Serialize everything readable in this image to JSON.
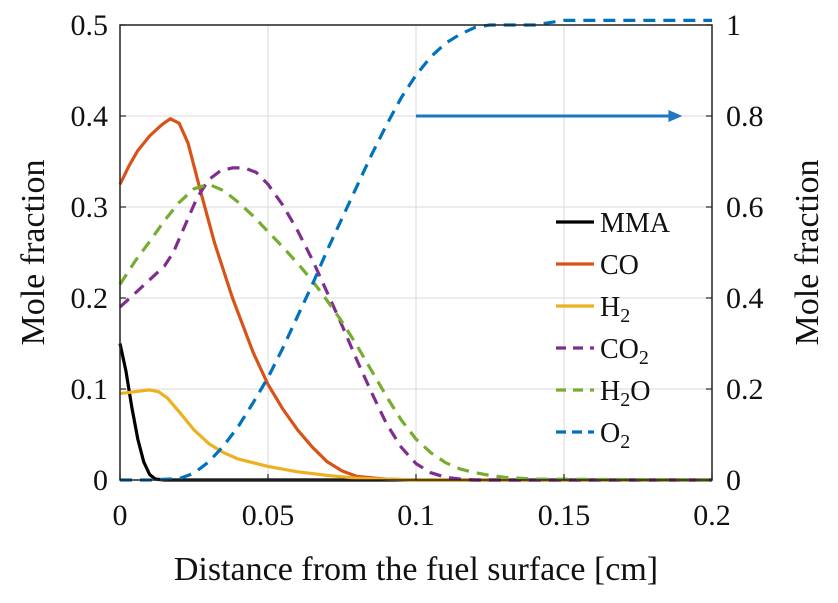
{
  "chart_data": {
    "type": "line",
    "title": "",
    "xlabel": "Distance from the fuel surface [cm]",
    "ylabel_left": "Mole fraction",
    "ylabel_right": "Mole fraction",
    "xlim": [
      0,
      0.2
    ],
    "ylim_left": [
      0,
      0.5
    ],
    "ylim_right": [
      0,
      1
    ],
    "xticks": [
      0,
      0.05,
      0.1,
      0.15,
      0.2
    ],
    "xtick_labels": [
      "0",
      "0.05",
      "0.1",
      "0.15",
      "0.2"
    ],
    "yticks_left": [
      0,
      0.1,
      0.2,
      0.3,
      0.4,
      0.5
    ],
    "ytick_labels_left": [
      "0",
      "0.1",
      "0.2",
      "0.3",
      "0.4",
      "0.5"
    ],
    "yticks_right": [
      0,
      0.2,
      0.4,
      0.6,
      0.8,
      1
    ],
    "ytick_labels_right": [
      "0",
      "0.2",
      "0.4",
      "0.6",
      "0.8",
      "1"
    ],
    "grid": true,
    "legend_position": "center-right",
    "arrow": {
      "from": [
        0.1,
        0.8
      ],
      "to": [
        0.19,
        0.8
      ],
      "axis": "right",
      "color": "#1f77c4"
    },
    "series": [
      {
        "name": "MMA",
        "legend_base": "MMA",
        "legend_sub": "",
        "legend_tail": "",
        "axis": "left",
        "color": "#000000",
        "dash": "solid",
        "x": [
          0,
          0.002,
          0.004,
          0.006,
          0.008,
          0.01,
          0.012,
          0.015,
          0.2
        ],
        "y": [
          0.15,
          0.12,
          0.08,
          0.045,
          0.02,
          0.006,
          0.001,
          0,
          0
        ]
      },
      {
        "name": "CO",
        "legend_base": "CO",
        "legend_sub": "",
        "legend_tail": "",
        "axis": "left",
        "color": "#d95319",
        "dash": "solid",
        "x": [
          0,
          0.003,
          0.006,
          0.01,
          0.014,
          0.017,
          0.02,
          0.023,
          0.027,
          0.032,
          0.038,
          0.045,
          0.05,
          0.055,
          0.06,
          0.065,
          0.07,
          0.075,
          0.08,
          0.09,
          0.1,
          0.2
        ],
        "y": [
          0.325,
          0.345,
          0.362,
          0.378,
          0.39,
          0.397,
          0.392,
          0.37,
          0.32,
          0.26,
          0.2,
          0.14,
          0.105,
          0.078,
          0.055,
          0.036,
          0.02,
          0.01,
          0.004,
          0.001,
          0,
          0
        ]
      },
      {
        "name": "H2",
        "legend_base": "H",
        "legend_sub": "2",
        "legend_tail": "",
        "axis": "left",
        "color": "#edb120",
        "dash": "solid",
        "x": [
          0,
          0.005,
          0.01,
          0.013,
          0.016,
          0.02,
          0.025,
          0.03,
          0.035,
          0.04,
          0.05,
          0.06,
          0.07,
          0.08,
          0.09,
          0.1,
          0.2
        ],
        "y": [
          0.095,
          0.097,
          0.099,
          0.097,
          0.09,
          0.075,
          0.055,
          0.04,
          0.03,
          0.023,
          0.015,
          0.009,
          0.005,
          0.002,
          0.001,
          0,
          0
        ]
      },
      {
        "name": "CO2",
        "legend_base": "CO",
        "legend_sub": "2",
        "legend_tail": "",
        "axis": "left",
        "color": "#7e2f8e",
        "dash": "dashed",
        "x": [
          0,
          0.005,
          0.01,
          0.015,
          0.018,
          0.022,
          0.026,
          0.03,
          0.034,
          0.038,
          0.042,
          0.046,
          0.05,
          0.055,
          0.06,
          0.065,
          0.07,
          0.075,
          0.08,
          0.085,
          0.09,
          0.095,
          0.1,
          0.105,
          0.11,
          0.115,
          0.12,
          0.2
        ],
        "y": [
          0.19,
          0.205,
          0.22,
          0.235,
          0.25,
          0.28,
          0.31,
          0.33,
          0.34,
          0.343,
          0.343,
          0.338,
          0.325,
          0.302,
          0.274,
          0.242,
          0.206,
          0.17,
          0.132,
          0.096,
          0.062,
          0.036,
          0.018,
          0.008,
          0.003,
          0.001,
          0,
          0
        ]
      },
      {
        "name": "H2O",
        "legend_base": "H",
        "legend_sub": "2",
        "legend_tail": "O",
        "axis": "left",
        "color": "#77ac30",
        "dash": "dashed",
        "x": [
          0,
          0.005,
          0.01,
          0.015,
          0.02,
          0.025,
          0.03,
          0.035,
          0.04,
          0.045,
          0.05,
          0.055,
          0.06,
          0.065,
          0.07,
          0.075,
          0.08,
          0.085,
          0.09,
          0.095,
          0.1,
          0.105,
          0.11,
          0.115,
          0.12,
          0.125,
          0.13,
          0.14,
          0.2
        ],
        "y": [
          0.215,
          0.24,
          0.262,
          0.285,
          0.305,
          0.32,
          0.325,
          0.318,
          0.305,
          0.29,
          0.273,
          0.256,
          0.238,
          0.219,
          0.197,
          0.174,
          0.148,
          0.12,
          0.092,
          0.066,
          0.045,
          0.03,
          0.019,
          0.012,
          0.008,
          0.005,
          0.003,
          0.001,
          0
        ]
      },
      {
        "name": "O2",
        "legend_base": "O",
        "legend_sub": "2",
        "legend_tail": "",
        "axis": "right",
        "color": "#0072bd",
        "dash": "dashed-fine",
        "x": [
          0,
          0.01,
          0.02,
          0.025,
          0.03,
          0.035,
          0.04,
          0.045,
          0.05,
          0.055,
          0.06,
          0.065,
          0.07,
          0.075,
          0.08,
          0.085,
          0.09,
          0.095,
          0.1,
          0.105,
          0.11,
          0.115,
          0.12,
          0.125,
          0.13,
          0.14,
          0.15,
          0.2
        ],
        "y": [
          0,
          0,
          0.003,
          0.015,
          0.04,
          0.075,
          0.118,
          0.17,
          0.225,
          0.29,
          0.36,
          0.43,
          0.505,
          0.575,
          0.645,
          0.715,
          0.78,
          0.84,
          0.89,
          0.93,
          0.96,
          0.98,
          0.995,
          1.0,
          1.0,
          1.0,
          1.01,
          1.01
        ]
      }
    ]
  }
}
